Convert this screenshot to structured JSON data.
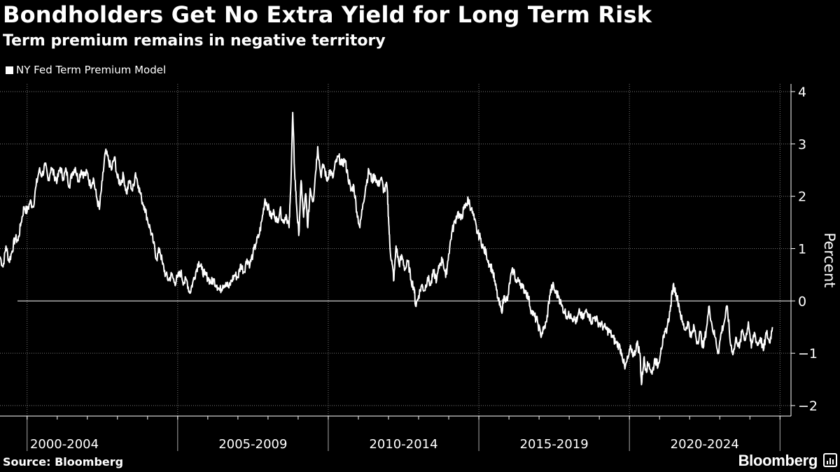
{
  "header": {
    "title": "Bondholders Get No Extra Yield for Long Term Risk",
    "subtitle": "Term premium remains in negative territory"
  },
  "footer": {
    "source": "Source: Bloomberg",
    "brand": "Bloomberg"
  },
  "colors": {
    "background": "#000000",
    "line": "#ffffff",
    "grid": "#666666"
  },
  "chart_data": {
    "type": "line",
    "xlabel": "",
    "ylabel": "Percent",
    "ylim": [
      -2,
      4
    ],
    "xlim": [
      1998.6,
      2024.4
    ],
    "y_ticks": [
      "4",
      "3",
      "2",
      "1",
      "0",
      "−1",
      "−2"
    ],
    "y_tick_values": [
      4,
      3,
      2,
      1,
      0,
      -1,
      -2
    ],
    "x_period_labels": [
      "2000-2004",
      "2005-2009",
      "2010-2014",
      "2015-2019",
      "2020-2024"
    ],
    "x_period_bounds": [
      1999.5,
      2004.5,
      2009.5,
      2014.5,
      2019.5,
      2024.5
    ],
    "legend_position": "top-left",
    "grid": true,
    "series": [
      {
        "name": "NY Fed Term Premium Model",
        "points": [
          [
            1998.6,
            0.85
          ],
          [
            1998.7,
            0.65
          ],
          [
            1998.8,
            1.05
          ],
          [
            1998.9,
            0.75
          ],
          [
            1999.0,
            0.95
          ],
          [
            1999.1,
            1.2
          ],
          [
            1999.2,
            1.15
          ],
          [
            1999.3,
            1.5
          ],
          [
            1999.4,
            1.8
          ],
          [
            1999.5,
            1.7
          ],
          [
            1999.6,
            1.9
          ],
          [
            1999.7,
            1.8
          ],
          [
            1999.8,
            2.2
          ],
          [
            1999.9,
            2.5
          ],
          [
            2000.0,
            2.4
          ],
          [
            2000.1,
            2.6
          ],
          [
            2000.2,
            2.3
          ],
          [
            2000.3,
            2.55
          ],
          [
            2000.4,
            2.4
          ],
          [
            2000.5,
            2.3
          ],
          [
            2000.6,
            2.55
          ],
          [
            2000.7,
            2.35
          ],
          [
            2000.8,
            2.5
          ],
          [
            2000.9,
            2.2
          ],
          [
            2001.0,
            2.45
          ],
          [
            2001.1,
            2.55
          ],
          [
            2001.2,
            2.3
          ],
          [
            2001.3,
            2.5
          ],
          [
            2001.4,
            2.4
          ],
          [
            2001.5,
            2.45
          ],
          [
            2001.6,
            2.2
          ],
          [
            2001.7,
            2.35
          ],
          [
            2001.8,
            2.0
          ],
          [
            2001.9,
            1.75
          ],
          [
            2002.0,
            2.3
          ],
          [
            2002.1,
            2.85
          ],
          [
            2002.2,
            2.7
          ],
          [
            2002.3,
            2.5
          ],
          [
            2002.4,
            2.75
          ],
          [
            2002.5,
            2.35
          ],
          [
            2002.6,
            2.25
          ],
          [
            2002.7,
            2.4
          ],
          [
            2002.8,
            2.05
          ],
          [
            2002.9,
            2.3
          ],
          [
            2003.0,
            2.1
          ],
          [
            2003.1,
            2.45
          ],
          [
            2003.2,
            2.2
          ],
          [
            2003.3,
            1.95
          ],
          [
            2003.4,
            1.8
          ],
          [
            2003.5,
            1.55
          ],
          [
            2003.6,
            1.35
          ],
          [
            2003.7,
            1.1
          ],
          [
            2003.8,
            0.8
          ],
          [
            2003.9,
            1.0
          ],
          [
            2004.0,
            0.7
          ],
          [
            2004.1,
            0.5
          ],
          [
            2004.2,
            0.4
          ],
          [
            2004.3,
            0.5
          ],
          [
            2004.4,
            0.35
          ],
          [
            2004.5,
            0.45
          ],
          [
            2004.6,
            0.55
          ],
          [
            2004.7,
            0.35
          ],
          [
            2004.8,
            0.4
          ],
          [
            2004.9,
            0.15
          ],
          [
            2005.0,
            0.35
          ],
          [
            2005.1,
            0.55
          ],
          [
            2005.2,
            0.75
          ],
          [
            2005.3,
            0.6
          ],
          [
            2005.4,
            0.5
          ],
          [
            2005.5,
            0.45
          ],
          [
            2005.6,
            0.35
          ],
          [
            2005.7,
            0.4
          ],
          [
            2005.8,
            0.3
          ],
          [
            2005.9,
            0.2
          ],
          [
            2006.0,
            0.3
          ],
          [
            2006.1,
            0.35
          ],
          [
            2006.2,
            0.25
          ],
          [
            2006.3,
            0.4
          ],
          [
            2006.4,
            0.5
          ],
          [
            2006.5,
            0.45
          ],
          [
            2006.6,
            0.7
          ],
          [
            2006.7,
            0.55
          ],
          [
            2006.8,
            0.8
          ],
          [
            2006.9,
            0.7
          ],
          [
            2007.0,
            0.9
          ],
          [
            2007.1,
            1.1
          ],
          [
            2007.2,
            1.25
          ],
          [
            2007.3,
            1.55
          ],
          [
            2007.4,
            1.95
          ],
          [
            2007.5,
            1.8
          ],
          [
            2007.6,
            1.6
          ],
          [
            2007.7,
            1.7
          ],
          [
            2007.8,
            1.5
          ],
          [
            2007.9,
            1.75
          ],
          [
            2008.0,
            1.5
          ],
          [
            2008.1,
            1.65
          ],
          [
            2008.2,
            1.4
          ],
          [
            2008.25,
            2.1
          ],
          [
            2008.32,
            3.6
          ],
          [
            2008.38,
            2.5
          ],
          [
            2008.45,
            1.8
          ],
          [
            2008.52,
            1.25
          ],
          [
            2008.6,
            2.3
          ],
          [
            2008.68,
            1.6
          ],
          [
            2008.75,
            2.05
          ],
          [
            2008.82,
            1.4
          ],
          [
            2008.9,
            2.15
          ],
          [
            2009.0,
            1.9
          ],
          [
            2009.07,
            2.4
          ],
          [
            2009.15,
            2.95
          ],
          [
            2009.25,
            2.4
          ],
          [
            2009.35,
            2.6
          ],
          [
            2009.45,
            2.3
          ],
          [
            2009.55,
            2.5
          ],
          [
            2009.65,
            2.35
          ],
          [
            2009.75,
            2.65
          ],
          [
            2009.85,
            2.75
          ],
          [
            2009.95,
            2.6
          ],
          [
            2010.05,
            2.7
          ],
          [
            2010.15,
            2.4
          ],
          [
            2010.25,
            2.1
          ],
          [
            2010.35,
            2.2
          ],
          [
            2010.45,
            1.7
          ],
          [
            2010.55,
            1.4
          ],
          [
            2010.65,
            1.85
          ],
          [
            2010.75,
            2.2
          ],
          [
            2010.85,
            2.5
          ],
          [
            2010.95,
            2.3
          ],
          [
            2011.05,
            2.4
          ],
          [
            2011.15,
            2.2
          ],
          [
            2011.25,
            2.35
          ],
          [
            2011.35,
            2.1
          ],
          [
            2011.45,
            2.2
          ],
          [
            2011.5,
            1.6
          ],
          [
            2011.55,
            1.0
          ],
          [
            2011.62,
            0.7
          ],
          [
            2011.68,
            0.4
          ],
          [
            2011.75,
            1.05
          ],
          [
            2011.85,
            0.7
          ],
          [
            2011.95,
            0.85
          ],
          [
            2012.05,
            0.6
          ],
          [
            2012.15,
            0.75
          ],
          [
            2012.25,
            0.4
          ],
          [
            2012.35,
            0.25
          ],
          [
            2012.4,
            -0.1
          ],
          [
            2012.5,
            0.1
          ],
          [
            2012.6,
            0.3
          ],
          [
            2012.7,
            0.2
          ],
          [
            2012.8,
            0.45
          ],
          [
            2012.9,
            0.3
          ],
          [
            2013.0,
            0.55
          ],
          [
            2013.1,
            0.4
          ],
          [
            2013.2,
            0.7
          ],
          [
            2013.3,
            0.8
          ],
          [
            2013.4,
            0.45
          ],
          [
            2013.5,
            0.9
          ],
          [
            2013.6,
            1.3
          ],
          [
            2013.7,
            1.5
          ],
          [
            2013.8,
            1.7
          ],
          [
            2013.9,
            1.55
          ],
          [
            2014.0,
            1.75
          ],
          [
            2014.1,
            1.85
          ],
          [
            2014.15,
            1.95
          ],
          [
            2014.25,
            1.75
          ],
          [
            2014.35,
            1.55
          ],
          [
            2014.45,
            1.3
          ],
          [
            2014.55,
            1.2
          ],
          [
            2014.65,
            1.0
          ],
          [
            2014.75,
            0.9
          ],
          [
            2014.85,
            0.7
          ],
          [
            2014.95,
            0.6
          ],
          [
            2015.05,
            0.3
          ],
          [
            2015.15,
            0.0
          ],
          [
            2015.25,
            -0.2
          ],
          [
            2015.35,
            0.1
          ],
          [
            2015.45,
            0.0
          ],
          [
            2015.55,
            0.45
          ],
          [
            2015.65,
            0.6
          ],
          [
            2015.75,
            0.35
          ],
          [
            2015.85,
            0.4
          ],
          [
            2015.95,
            0.25
          ],
          [
            2016.05,
            0.2
          ],
          [
            2016.15,
            0.05
          ],
          [
            2016.25,
            -0.2
          ],
          [
            2016.35,
            -0.3
          ],
          [
            2016.45,
            -0.4
          ],
          [
            2016.55,
            -0.65
          ],
          [
            2016.65,
            -0.55
          ],
          [
            2016.75,
            -0.4
          ],
          [
            2016.85,
            0.1
          ],
          [
            2016.95,
            0.3
          ],
          [
            2017.05,
            0.15
          ],
          [
            2017.15,
            0.1
          ],
          [
            2017.25,
            -0.1
          ],
          [
            2017.35,
            -0.2
          ],
          [
            2017.45,
            -0.3
          ],
          [
            2017.55,
            -0.25
          ],
          [
            2017.65,
            -0.35
          ],
          [
            2017.75,
            -0.4
          ],
          [
            2017.85,
            -0.2
          ],
          [
            2017.95,
            -0.35
          ],
          [
            2018.05,
            -0.2
          ],
          [
            2018.15,
            -0.25
          ],
          [
            2018.25,
            -0.4
          ],
          [
            2018.35,
            -0.3
          ],
          [
            2018.45,
            -0.4
          ],
          [
            2018.55,
            -0.45
          ],
          [
            2018.65,
            -0.5
          ],
          [
            2018.75,
            -0.55
          ],
          [
            2018.85,
            -0.6
          ],
          [
            2018.95,
            -0.7
          ],
          [
            2019.05,
            -0.8
          ],
          [
            2019.15,
            -0.85
          ],
          [
            2019.25,
            -1.0
          ],
          [
            2019.35,
            -1.3
          ],
          [
            2019.45,
            -1.1
          ],
          [
            2019.55,
            -0.9
          ],
          [
            2019.65,
            -1.05
          ],
          [
            2019.75,
            -0.8
          ],
          [
            2019.85,
            -1.0
          ],
          [
            2019.9,
            -1.6
          ],
          [
            2019.98,
            -1.1
          ],
          [
            2020.05,
            -1.3
          ],
          [
            2020.15,
            -1.2
          ],
          [
            2020.25,
            -1.4
          ],
          [
            2020.35,
            -1.1
          ],
          [
            2020.45,
            -1.25
          ],
          [
            2020.55,
            -0.9
          ],
          [
            2020.65,
            -0.7
          ],
          [
            2020.75,
            -0.5
          ],
          [
            2020.85,
            -0.2
          ],
          [
            2020.95,
            0.3
          ],
          [
            2021.05,
            0.15
          ],
          [
            2021.15,
            -0.1
          ],
          [
            2021.25,
            -0.4
          ],
          [
            2021.35,
            -0.55
          ],
          [
            2021.45,
            -0.4
          ],
          [
            2021.55,
            -0.7
          ],
          [
            2021.65,
            -0.5
          ],
          [
            2021.75,
            -0.8
          ],
          [
            2021.85,
            -0.6
          ],
          [
            2021.95,
            -0.9
          ],
          [
            2022.05,
            -0.55
          ],
          [
            2022.15,
            -0.1
          ],
          [
            2022.25,
            -0.5
          ],
          [
            2022.35,
            -0.7
          ],
          [
            2022.45,
            -1.0
          ],
          [
            2022.55,
            -0.6
          ],
          [
            2022.65,
            -0.4
          ],
          [
            2022.75,
            -0.1
          ],
          [
            2022.85,
            -0.8
          ],
          [
            2022.95,
            -1.0
          ],
          [
            2023.05,
            -0.7
          ],
          [
            2023.15,
            -0.9
          ],
          [
            2023.25,
            -0.55
          ],
          [
            2023.35,
            -0.75
          ],
          [
            2023.45,
            -0.4
          ],
          [
            2023.55,
            -0.9
          ],
          [
            2023.65,
            -0.6
          ],
          [
            2023.75,
            -0.85
          ],
          [
            2023.85,
            -0.7
          ],
          [
            2023.95,
            -0.95
          ],
          [
            2024.05,
            -0.6
          ],
          [
            2024.15,
            -0.8
          ],
          [
            2024.25,
            -0.5
          ]
        ]
      }
    ]
  }
}
